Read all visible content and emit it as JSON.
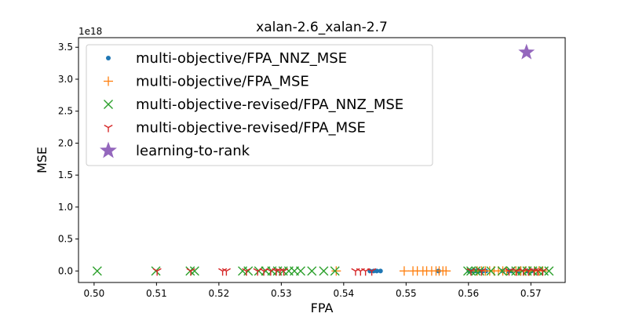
{
  "chart_data": {
    "type": "scatter",
    "title": "xalan-2.6_xalan-2.7",
    "xlabel": "FPA",
    "ylabel": "MSE",
    "y_offset_text": "1e18",
    "y_scale": 1e+18,
    "xlim": [
      0.4975,
      0.5755
    ],
    "ylim": [
      -0.18,
      3.65
    ],
    "xticks": [
      0.5,
      0.51,
      0.52,
      0.53,
      0.54,
      0.55,
      0.56,
      0.57
    ],
    "xtick_labels": [
      "0.50",
      "0.51",
      "0.52",
      "0.53",
      "0.54",
      "0.55",
      "0.56",
      "0.57"
    ],
    "yticks": [
      0.0,
      0.5,
      1.0,
      1.5,
      2.0,
      2.5,
      3.0,
      3.5
    ],
    "ytick_labels": [
      "0.0",
      "0.5",
      "1.0",
      "1.5",
      "2.0",
      "2.5",
      "3.0",
      "3.5"
    ],
    "grid": false,
    "legend_position": "upper-left",
    "series": [
      {
        "name": "multi-objective/FPA_NNZ_MSE",
        "marker": "dot",
        "color": "#1f77b4",
        "x": [
          0.5442,
          0.5448,
          0.5453,
          0.5459,
          0.5552,
          0.5601,
          0.5606,
          0.5612,
          0.5617,
          0.5623,
          0.5628,
          0.5655,
          0.5664,
          0.5669,
          0.5681,
          0.5694,
          0.5701
        ],
        "y": [
          0,
          0,
          0,
          0,
          0,
          0,
          0,
          0,
          0,
          0,
          0,
          0,
          0,
          0,
          0,
          0,
          0
        ]
      },
      {
        "name": "multi-objective/FPA_MSE",
        "marker": "plus",
        "color": "#ff7f0e",
        "x": [
          0.5388,
          0.5497,
          0.5511,
          0.5518,
          0.5527,
          0.5533,
          0.5541,
          0.5548,
          0.5553,
          0.5559,
          0.5564,
          0.5614,
          0.5621,
          0.5627,
          0.5634,
          0.5641,
          0.5648,
          0.5655,
          0.5661,
          0.5676,
          0.5684,
          0.5691,
          0.5698,
          0.5706,
          0.5713,
          0.5719
        ],
        "y": [
          0,
          0,
          0,
          0,
          0,
          0,
          0,
          0,
          0,
          0,
          0,
          0,
          0,
          0,
          0,
          0,
          0,
          0,
          0,
          0,
          0,
          0,
          0,
          0,
          0,
          0
        ]
      },
      {
        "name": "multi-objective-revised/FPA_NNZ_MSE",
        "marker": "x",
        "color": "#2ca02c",
        "x": [
          0.5005,
          0.5099,
          0.5154,
          0.5161,
          0.5238,
          0.5247,
          0.5264,
          0.5275,
          0.5285,
          0.5294,
          0.5303,
          0.5312,
          0.5321,
          0.5331,
          0.5349,
          0.5368,
          0.5386,
          0.5599,
          0.5604,
          0.5612,
          0.5618,
          0.5636,
          0.5654,
          0.5668,
          0.5676,
          0.5686,
          0.5694,
          0.5703,
          0.5712,
          0.5721,
          0.5729
        ],
        "y": [
          0,
          0,
          0,
          0,
          0,
          0,
          0,
          0,
          0,
          0,
          0,
          0,
          0,
          0,
          0,
          0,
          0,
          0,
          0,
          0,
          0,
          0,
          0,
          0,
          0,
          0,
          0,
          0,
          0,
          0,
          0
        ]
      },
      {
        "name": "multi-objective-revised/FPA_MSE",
        "marker": "tri_down",
        "color": "#d62728",
        "x": [
          0.5101,
          0.5155,
          0.5206,
          0.5212,
          0.5244,
          0.5262,
          0.5272,
          0.5283,
          0.5292,
          0.5298,
          0.5304,
          0.5419,
          0.5427,
          0.5435,
          0.5445,
          0.5604,
          0.5621,
          0.5665,
          0.5677,
          0.5688,
          0.5696,
          0.5705,
          0.5711,
          0.5719
        ],
        "y": [
          0,
          0,
          0,
          0,
          0,
          0,
          0,
          0,
          0,
          0,
          0,
          0,
          0,
          0,
          0,
          0,
          0,
          0,
          0,
          0,
          0,
          0,
          0,
          0
        ]
      },
      {
        "name": "learning-to-rank",
        "marker": "star",
        "color": "#9467bd",
        "x": [
          0.5693
        ],
        "y": [
          3.42
        ]
      }
    ]
  }
}
